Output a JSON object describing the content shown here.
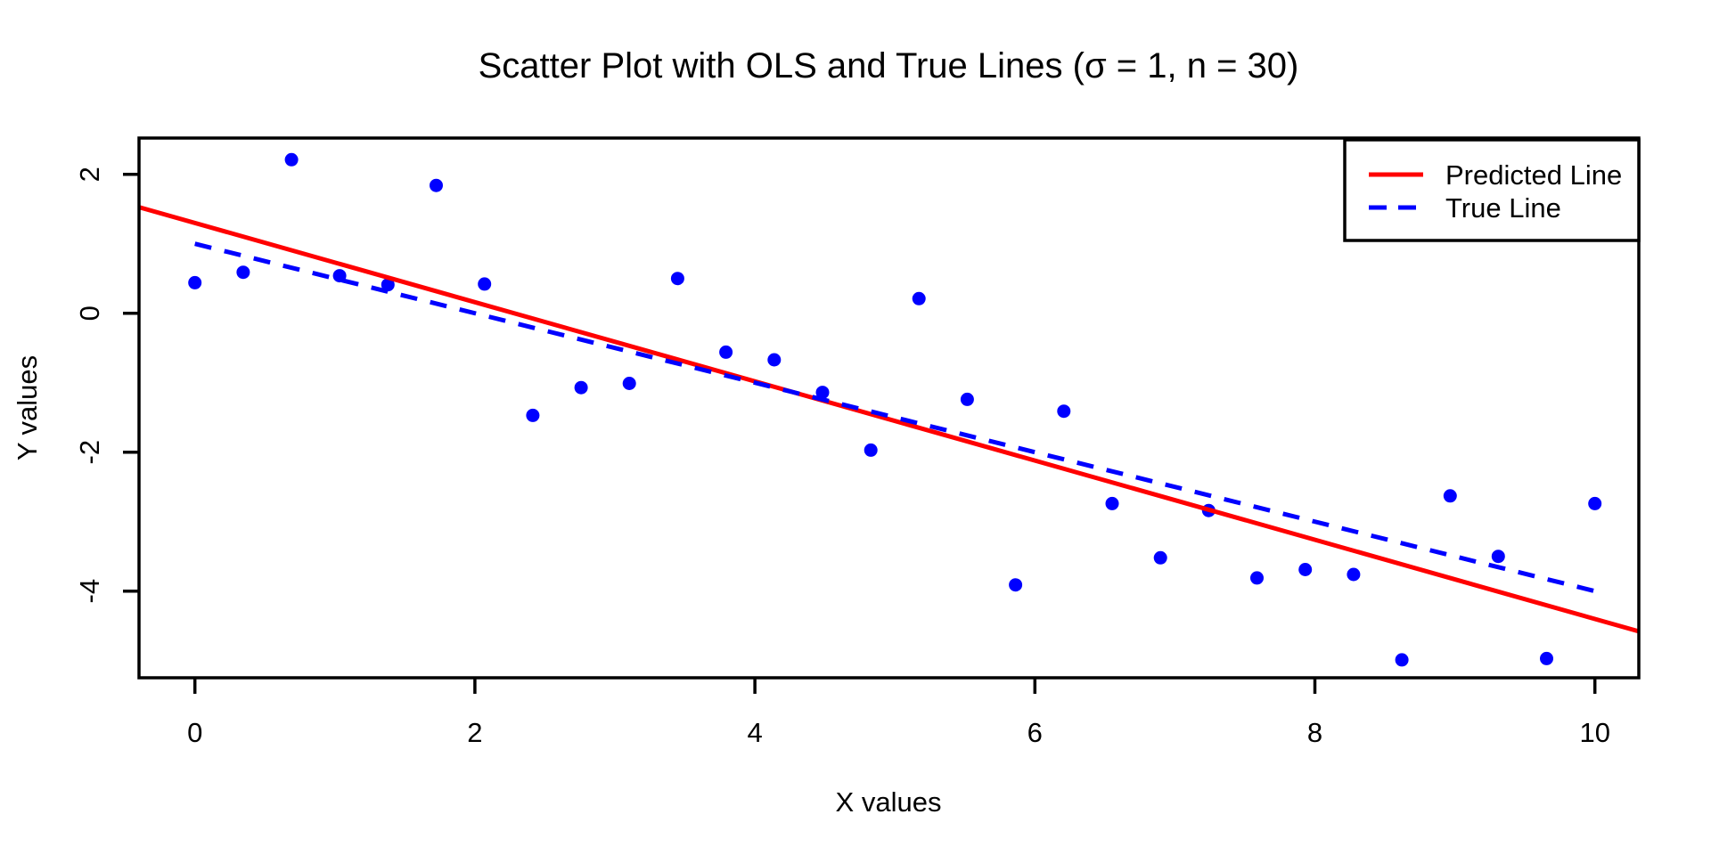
{
  "chart_data": {
    "type": "scatter",
    "title": "Scatter Plot with OLS and True Lines (σ = 1, n = 30)",
    "xlabel": "X values",
    "ylabel": "Y values",
    "sigma": 1,
    "n": 30,
    "x_ticks": [
      0,
      2,
      4,
      6,
      8,
      10
    ],
    "y_ticks": [
      2,
      0,
      -2,
      -4
    ],
    "xlim": [
      -0.4,
      10.31
    ],
    "ylim": [
      -5.25,
      2.52
    ],
    "grid": false,
    "background_color": "#ffffff",
    "axis_color": "#000000",
    "point_color": "#0000ff",
    "points": {
      "x": [
        0.0,
        0.345,
        0.69,
        1.034,
        1.379,
        1.724,
        2.069,
        2.414,
        2.759,
        3.103,
        3.448,
        3.793,
        4.138,
        4.483,
        4.828,
        5.172,
        5.517,
        5.862,
        6.207,
        6.552,
        6.897,
        7.241,
        7.586,
        7.931,
        8.276,
        8.621,
        8.966,
        9.31,
        9.655,
        10.0
      ],
      "y": [
        0.44,
        0.59,
        2.21,
        0.54,
        0.41,
        1.84,
        0.42,
        -1.47,
        -1.07,
        -1.01,
        0.5,
        -0.56,
        -0.67,
        -1.14,
        -1.97,
        0.21,
        -1.24,
        -3.91,
        -1.41,
        -2.74,
        -3.52,
        -2.84,
        -3.81,
        -3.69,
        -3.76,
        -4.99,
        -2.63,
        -3.5,
        -4.97,
        -2.74
      ]
    },
    "series": [
      {
        "name": "Predicted Line",
        "type": "line",
        "style": "solid",
        "color": "#ff0000",
        "slope": -0.57,
        "intercept": 1.299,
        "x_range": [
          -0.399,
          10.313
        ]
      },
      {
        "name": "True Line",
        "type": "line",
        "style": "dashed",
        "color": "#0000ff",
        "slope": -0.5,
        "intercept": 1.0,
        "x_range": [
          0,
          10
        ]
      }
    ],
    "legend": {
      "position": "topright",
      "items": [
        {
          "label": "Predicted Line",
          "color": "#ff0000",
          "style": "solid"
        },
        {
          "label": "True Line",
          "color": "#0000ff",
          "style": "dashed"
        }
      ]
    }
  }
}
